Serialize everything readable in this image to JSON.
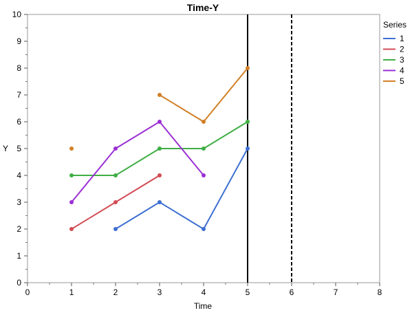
{
  "chart_data": {
    "type": "line",
    "title": "Time-Y",
    "xlabel": "Time",
    "ylabel": "Y",
    "xlim": [
      0,
      8
    ],
    "ylim": [
      0,
      10
    ],
    "x_ticks": [
      0,
      1,
      2,
      3,
      4,
      5,
      6,
      7,
      8
    ],
    "y_ticks": [
      0,
      1,
      2,
      3,
      4,
      5,
      6,
      7,
      8,
      9,
      10
    ],
    "grid": false,
    "legend": {
      "title": "Series",
      "placement": "right"
    },
    "reference_lines": [
      {
        "x": 5,
        "style": "solid",
        "color": "#000000"
      },
      {
        "x": 6,
        "style": "dashed",
        "color": "#000000"
      }
    ],
    "series": [
      {
        "name": "1",
        "color": "#3d6fd1",
        "points": [
          [
            2,
            2
          ],
          [
            3,
            3
          ],
          [
            4,
            2
          ],
          [
            5,
            5
          ]
        ]
      },
      {
        "name": "2",
        "color": "#d24b55",
        "points": [
          [
            1,
            2
          ],
          [
            2,
            3
          ],
          [
            3,
            4
          ]
        ]
      },
      {
        "name": "3",
        "color": "#3fae44",
        "points": [
          [
            1,
            4
          ],
          [
            2,
            4
          ],
          [
            3,
            5
          ],
          [
            4,
            5
          ],
          [
            5,
            6
          ]
        ]
      },
      {
        "name": "4",
        "color": "#9b2fd4",
        "points": [
          [
            1,
            3
          ],
          [
            2,
            5
          ],
          [
            3,
            6
          ],
          [
            4,
            4
          ]
        ]
      },
      {
        "name": "5",
        "color": "#d17f26",
        "points": [
          [
            1,
            5
          ],
          [
            3,
            7
          ],
          [
            4,
            6
          ],
          [
            5,
            8
          ]
        ],
        "segments": [
          [
            [
              1,
              5
            ]
          ],
          [
            [
              3,
              7
            ],
            [
              4,
              6
            ],
            [
              5,
              8
            ]
          ]
        ]
      }
    ]
  }
}
